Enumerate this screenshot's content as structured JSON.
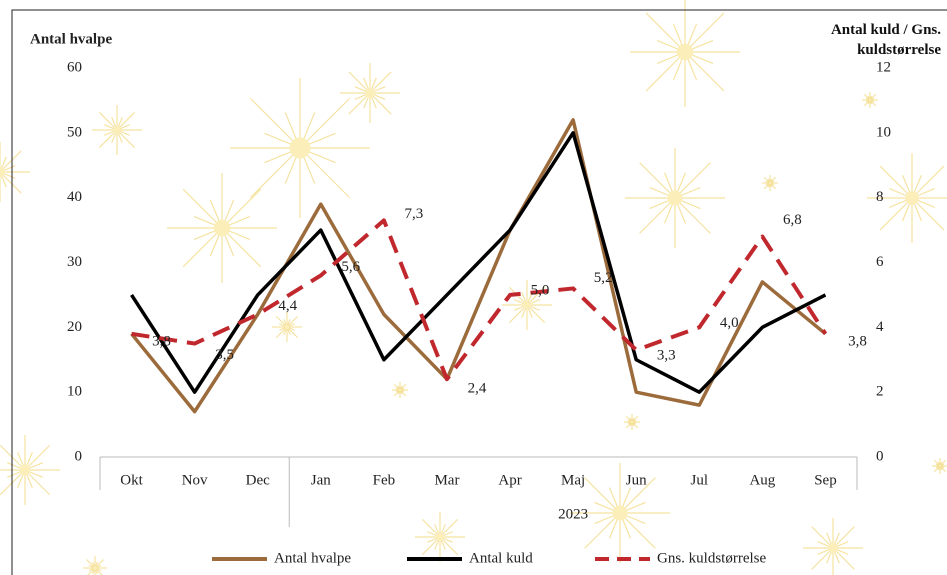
{
  "chart_data": {
    "type": "line",
    "ylabel": "Antal hvalpe",
    "y2label": "Antal kuld / Gns. kuldstørrelse",
    "group_label": "2023",
    "categories": [
      "Okt",
      "Nov",
      "Dec",
      "Jan",
      "Feb",
      "Mar",
      "Apr",
      "Maj",
      "Jun",
      "Jul",
      "Aug",
      "Sep"
    ],
    "ylim": [
      0,
      60
    ],
    "yticks": [
      0,
      10,
      20,
      30,
      40,
      50,
      60
    ],
    "y2lim": [
      0,
      12
    ],
    "y2ticks": [
      0,
      2,
      4,
      6,
      8,
      10,
      12
    ],
    "series": [
      {
        "name": "Antal hvalpe",
        "color": "#9c6b3c",
        "values": [
          19,
          7,
          22,
          39,
          22,
          12,
          35,
          52,
          10,
          8,
          27,
          19
        ]
      },
      {
        "name": "Antal kuld",
        "color": "#000000",
        "axis": "y2",
        "values": [
          5,
          2,
          5,
          7,
          3,
          5,
          7,
          10,
          3,
          2,
          4,
          5
        ]
      },
      {
        "name": "Gns. kuldstørrelse",
        "color": "#c0282d",
        "axis": "y2",
        "dashed": true,
        "values": [
          3.8,
          3.5,
          4.4,
          5.6,
          7.3,
          2.4,
          5.0,
          5.2,
          3.3,
          4.0,
          6.8,
          3.8
        ],
        "value_labels": [
          "3,8",
          "3,5",
          "4,4",
          "5,6",
          "7,3",
          "2,4",
          "5,0",
          "5,2",
          "3,3",
          "4,0",
          "6,8",
          "3,8"
        ]
      }
    ]
  }
}
